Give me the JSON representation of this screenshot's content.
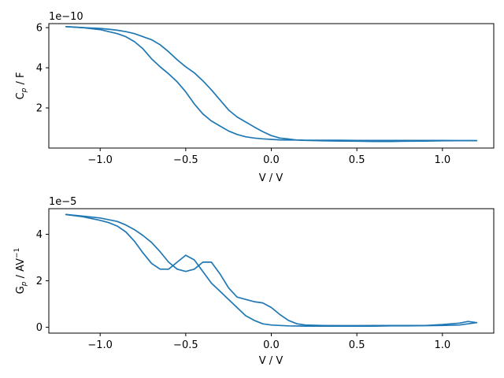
{
  "chart_data": [
    {
      "type": "line",
      "offset_label": "1e−10",
      "xlabel": "V / V",
      "ylabel": "C",
      "ylabel_sub": "p",
      "ylabel_suffix": " / F",
      "xlim": [
        -1.3,
        1.3
      ],
      "ylim": [
        0.0,
        6.2
      ],
      "xticks": [
        -1.0,
        -0.5,
        0.0,
        0.5,
        1.0
      ],
      "xtick_labels": [
        "−1.0",
        "−0.5",
        "0.0",
        "0.5",
        "1.0"
      ],
      "yticks": [
        2,
        4,
        6
      ],
      "ytick_labels": [
        "2",
        "4",
        "6"
      ],
      "series": [
        {
          "color": "#1f77b4",
          "x": [
            -1.2,
            -1.1,
            -1.0,
            -0.95,
            -0.9,
            -0.85,
            -0.8,
            -0.75,
            -0.7,
            -0.65,
            -0.6,
            -0.55,
            -0.5,
            -0.45,
            -0.4,
            -0.35,
            -0.3,
            -0.25,
            -0.2,
            -0.15,
            -0.1,
            -0.05,
            0.0,
            0.05,
            0.1,
            0.15,
            0.2,
            0.3,
            0.4,
            0.5,
            0.6,
            0.7,
            0.8,
            0.9,
            1.0,
            1.1,
            1.2
          ],
          "y": [
            6.05,
            6.0,
            5.9,
            5.8,
            5.7,
            5.55,
            5.3,
            4.95,
            4.45,
            4.05,
            3.7,
            3.3,
            2.8,
            2.2,
            1.7,
            1.35,
            1.1,
            0.85,
            0.68,
            0.56,
            0.5,
            0.46,
            0.43,
            0.41,
            0.4,
            0.4,
            0.39,
            0.39,
            0.39,
            0.38,
            0.38,
            0.38,
            0.38,
            0.38,
            0.38,
            0.37,
            0.37
          ]
        },
        {
          "color": "#1f77b4",
          "x": [
            1.2,
            1.1,
            1.0,
            0.9,
            0.8,
            0.7,
            0.6,
            0.5,
            0.4,
            0.3,
            0.2,
            0.15,
            0.1,
            0.05,
            0.0,
            -0.05,
            -0.1,
            -0.15,
            -0.2,
            -0.25,
            -0.3,
            -0.35,
            -0.4,
            -0.45,
            -0.5,
            -0.55,
            -0.6,
            -0.65,
            -0.7,
            -0.75,
            -0.8,
            -0.85,
            -0.9,
            -0.95,
            -1.0,
            -1.1,
            -1.2
          ],
          "y": [
            0.37,
            0.37,
            0.36,
            0.35,
            0.34,
            0.33,
            0.33,
            0.34,
            0.35,
            0.36,
            0.38,
            0.4,
            0.45,
            0.5,
            0.62,
            0.82,
            1.05,
            1.3,
            1.55,
            1.9,
            2.4,
            2.9,
            3.35,
            3.75,
            4.05,
            4.4,
            4.8,
            5.15,
            5.4,
            5.55,
            5.7,
            5.8,
            5.87,
            5.92,
            5.96,
            6.0,
            6.05
          ]
        }
      ]
    },
    {
      "type": "line",
      "offset_label": "1e−5",
      "xlabel": "V / V",
      "ylabel": "G",
      "ylabel_sub": "p",
      "ylabel_suffix": " / AV",
      "ylabel_sup": "−1",
      "xlim": [
        -1.3,
        1.3
      ],
      "ylim": [
        -0.25,
        5.1
      ],
      "xticks": [
        -1.0,
        -0.5,
        0.0,
        0.5,
        1.0
      ],
      "xtick_labels": [
        "−1.0",
        "−0.5",
        "0.0",
        "0.5",
        "1.0"
      ],
      "yticks": [
        0,
        2,
        4
      ],
      "ytick_labels": [
        "0",
        "2",
        "4"
      ],
      "series": [
        {
          "color": "#1f77b4",
          "x": [
            -1.2,
            -1.1,
            -1.0,
            -0.95,
            -0.9,
            -0.85,
            -0.8,
            -0.75,
            -0.7,
            -0.65,
            -0.6,
            -0.55,
            -0.5,
            -0.45,
            -0.4,
            -0.35,
            -0.3,
            -0.25,
            -0.2,
            -0.15,
            -0.1,
            -0.05,
            0.0,
            0.05,
            0.1,
            0.2,
            0.3,
            0.4,
            0.5,
            0.6,
            0.7,
            0.8,
            0.9,
            1.0,
            1.1,
            1.15,
            1.2
          ],
          "y": [
            4.85,
            4.75,
            4.6,
            4.5,
            4.35,
            4.1,
            3.7,
            3.2,
            2.75,
            2.5,
            2.5,
            2.8,
            3.1,
            2.9,
            2.4,
            1.9,
            1.55,
            1.2,
            0.85,
            0.5,
            0.3,
            0.15,
            0.1,
            0.08,
            0.06,
            0.05,
            0.05,
            0.05,
            0.05,
            0.05,
            0.06,
            0.06,
            0.07,
            0.08,
            0.1,
            0.15,
            0.2
          ]
        },
        {
          "color": "#1f77b4",
          "x": [
            1.2,
            1.15,
            1.1,
            1.0,
            0.9,
            0.8,
            0.7,
            0.6,
            0.5,
            0.4,
            0.3,
            0.2,
            0.15,
            0.1,
            0.05,
            0.0,
            -0.05,
            -0.1,
            -0.15,
            -0.2,
            -0.25,
            -0.3,
            -0.35,
            -0.4,
            -0.45,
            -0.5,
            -0.55,
            -0.6,
            -0.65,
            -0.7,
            -0.75,
            -0.8,
            -0.85,
            -0.9,
            -1.0,
            -1.1,
            -1.2
          ],
          "y": [
            0.2,
            0.25,
            0.18,
            0.12,
            0.08,
            0.08,
            0.08,
            0.08,
            0.07,
            0.07,
            0.08,
            0.1,
            0.15,
            0.3,
            0.55,
            0.85,
            1.05,
            1.1,
            1.2,
            1.3,
            1.7,
            2.3,
            2.8,
            2.8,
            2.5,
            2.4,
            2.5,
            2.8,
            3.25,
            3.65,
            3.95,
            4.2,
            4.4,
            4.55,
            4.7,
            4.78,
            4.85
          ]
        }
      ]
    }
  ]
}
